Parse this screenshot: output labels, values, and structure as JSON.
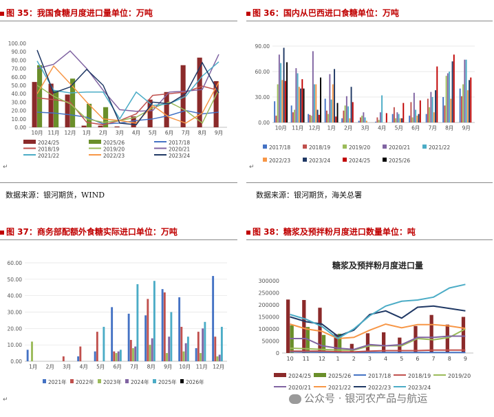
{
  "captions": {
    "fig35": "图 35：我国食糖月度进口量单位：万吨",
    "fig36": "图 36：国内从巴西进口食糖单位：万吨",
    "fig37": "图 37：商务部配额外食糖实际进口单位：万吨",
    "fig38": "图 38：糖浆及预拌粉月度进口数量单位：吨"
  },
  "sources": {
    "left": "数据来源：银河期货，WIND",
    "right": "数据来源：银河期货，海关总署"
  },
  "watermark": "公众号 · 银河农产品与航运",
  "chart_data": [
    {
      "id": "fig35",
      "type": "bar+line",
      "categories": [
        "10月",
        "11月",
        "12月",
        "1月",
        "2月",
        "3月",
        "4月",
        "5月",
        "6月",
        "7月",
        "8月",
        "9月"
      ],
      "y_ticks": [
        "0.00",
        "10.00",
        "20.00",
        "30.00",
        "40.00",
        "50.00",
        "60.00",
        "70.00",
        "80.00",
        "90.00",
        "100.00"
      ],
      "ylim": [
        0,
        100
      ],
      "bar_series": [
        {
          "name": "2024/25",
          "color": "#8b2a2a",
          "values": [
            54,
            52,
            39,
            2,
            2,
            1,
            13,
            33,
            42,
            74,
            83,
            55
          ]
        },
        {
          "name": "2025/26",
          "color": "#6a8f2a",
          "values": [
            74,
            44,
            58,
            28,
            24,
            null,
            null,
            null,
            null,
            null,
            null,
            null
          ]
        }
      ],
      "line_series": [
        {
          "name": "2017/18",
          "color": "#4472c4",
          "values": [
            18,
            17,
            15,
            12,
            4,
            5,
            8,
            10,
            14,
            20,
            16,
            18
          ]
        },
        {
          "name": "2018/19",
          "color": "#c0504d",
          "values": [
            35,
            33,
            30,
            6,
            3,
            8,
            16,
            38,
            40,
            42,
            49,
            44
          ]
        },
        {
          "name": "2019/20",
          "color": "#9bbb59",
          "values": [
            50,
            37,
            28,
            10,
            6,
            8,
            12,
            23,
            30,
            20,
            5,
            45
          ]
        },
        {
          "name": "2020/21",
          "color": "#8064a2",
          "values": [
            70,
            75,
            91,
            70,
            44,
            21,
            19,
            20,
            42,
            43,
            45,
            87
          ]
        },
        {
          "name": "2021/22",
          "color": "#4bacc6",
          "values": [
            79,
            44,
            41,
            42,
            42,
            10,
            42,
            26,
            28,
            37,
            61,
            78
          ]
        },
        {
          "name": "2022/23",
          "color": "#f79646",
          "values": [
            40,
            73,
            52,
            30,
            10,
            8,
            5,
            26,
            12,
            5,
            17,
            54
          ]
        },
        {
          "name": "2023/24",
          "color": "#1f3864",
          "values": [
            92,
            41,
            48,
            69,
            50,
            5,
            3,
            30,
            28,
            40,
            77,
            41
          ]
        }
      ]
    },
    {
      "id": "fig36",
      "type": "bar",
      "categories": [
        "10月",
        "11月",
        "12月",
        "1月",
        "2月",
        "3月",
        "4月",
        "5月",
        "6月",
        "7月",
        "8月",
        "9月"
      ],
      "y_ticks": [
        "0.00",
        "30.00",
        "60.00",
        "90.00"
      ],
      "ylim": [
        0,
        90
      ],
      "series": [
        {
          "name": "2017/18",
          "color": "#4472c4",
          "values": [
            25,
            20,
            10,
            28,
            5,
            2,
            1,
            10,
            8,
            10,
            30,
            40
          ]
        },
        {
          "name": "2018/19",
          "color": "#c0504d",
          "values": [
            8,
            12,
            9,
            14,
            14,
            6,
            6,
            18,
            24,
            28,
            20,
            31
          ]
        },
        {
          "name": "2019/20",
          "color": "#9bbb59",
          "values": [
            45,
            15,
            8,
            10,
            20,
            8,
            3,
            5,
            6,
            18,
            55,
            45
          ]
        },
        {
          "name": "2020/21",
          "color": "#8064a2",
          "values": [
            80,
            64,
            84,
            57,
            31,
            12,
            12,
            12,
            35,
            36,
            58,
            74
          ]
        },
        {
          "name": "2021/22",
          "color": "#4bacc6",
          "values": [
            70,
            58,
            45,
            27,
            19,
            6,
            32,
            10,
            15,
            30,
            60,
            74
          ]
        },
        {
          "name": "2022/23",
          "color": "#f79646",
          "values": [
            50,
            42,
            45,
            45,
            5,
            2,
            0,
            5,
            8,
            12,
            28,
            38
          ]
        },
        {
          "name": "2023/24",
          "color": "#1f3864",
          "values": [
            88,
            40,
            15,
            63,
            42,
            0,
            0,
            5,
            10,
            38,
            72,
            50
          ]
        },
        {
          "name": "2024/25",
          "color": "#c00000",
          "values": [
            49,
            51,
            9,
            7,
            24,
            0,
            11,
            23,
            26,
            66,
            80,
            53
          ]
        },
        {
          "name": "2025/26",
          "color": "#000000",
          "values": [
            71,
            40,
            53,
            23,
            null,
            null,
            null,
            null,
            null,
            null,
            null,
            null
          ]
        }
      ]
    },
    {
      "id": "fig37",
      "type": "bar",
      "categories": [
        "1月",
        "2月",
        "3月",
        "4月",
        "5月",
        "6月",
        "7月",
        "8月",
        "9月",
        "10月",
        "11月",
        "12月"
      ],
      "y_ticks": [
        "0.00",
        "10.00",
        "20.00",
        "30.00",
        "40.00",
        "50.00",
        "60.00"
      ],
      "ylim": [
        0,
        60
      ],
      "series": [
        {
          "name": "2021年",
          "color": "#4472c4",
          "values": [
            7,
            0,
            0,
            3,
            6,
            33,
            29,
            28,
            44,
            39,
            8,
            52
          ]
        },
        {
          "name": "2022年",
          "color": "#c0504d",
          "values": [
            0,
            0,
            3,
            9,
            18,
            6,
            13,
            38,
            42,
            21,
            18,
            15
          ]
        },
        {
          "name": "2023年",
          "color": "#9bbb59",
          "values": [
            12,
            0,
            0,
            0,
            0,
            5,
            8,
            10,
            5,
            6,
            5,
            3
          ]
        },
        {
          "name": "2024年",
          "color": "#8064a2",
          "values": [
            0,
            0,
            0,
            0,
            0,
            6,
            9,
            14,
            15,
            11,
            20,
            4
          ]
        },
        {
          "name": "2025年",
          "color": "#4bacc6",
          "values": [
            0,
            0,
            0,
            0,
            21,
            7,
            47,
            49,
            30,
            15,
            24,
            21
          ]
        },
        {
          "name": "2026年",
          "color": "#000000",
          "values": [
            null,
            null,
            null,
            null,
            null,
            null,
            null,
            null,
            null,
            null,
            null,
            null
          ]
        }
      ]
    },
    {
      "id": "fig38",
      "type": "bar+line",
      "title": "糖浆及预拌粉月度进口量",
      "categories": [
        "10",
        "11",
        "12",
        "1",
        "2",
        "3",
        "4",
        "5",
        "6",
        "7",
        "8",
        "9"
      ],
      "y_ticks": [
        "0",
        "50000",
        "100000",
        "150000",
        "200000",
        "250000",
        "300000"
      ],
      "ylim": [
        0,
        300000
      ],
      "bar_series": [
        {
          "name": "2024/25",
          "color": "#8b2a2a",
          "values": [
            222000,
            220000,
            188000,
            78000,
            38000,
            82000,
            86000,
            64000,
            112000,
            158000,
            118000,
            150000
          ]
        },
        {
          "name": "2025/26",
          "color": "#6a8f2a",
          "values": [
            115000,
            108000,
            75000,
            80000,
            null,
            null,
            null,
            null,
            null,
            null,
            null,
            null
          ]
        }
      ],
      "line_series": [
        {
          "name": "2017/18",
          "color": "#4472c4",
          "values": [
            5000,
            4000,
            3000,
            2000,
            2000,
            2000,
            2000,
            2000,
            2000,
            2000,
            2000,
            2000
          ]
        },
        {
          "name": "2018/19",
          "color": "#c0504d",
          "values": [
            8000,
            8000,
            8000,
            5000,
            5000,
            8000,
            10000,
            10000,
            10000,
            12000,
            12000,
            12000
          ]
        },
        {
          "name": "2019/20",
          "color": "#9bbb59",
          "values": [
            20000,
            18000,
            15000,
            12000,
            12000,
            30000,
            30000,
            30000,
            60000,
            55000,
            65000,
            100000
          ]
        },
        {
          "name": "2020/21",
          "color": "#8064a2",
          "values": [
            60000,
            60000,
            30000,
            20000,
            15000,
            35000,
            30000,
            35000,
            65000,
            65000,
            70000,
            70000
          ]
        },
        {
          "name": "2021/22",
          "color": "#f79646",
          "values": [
            120000,
            100000,
            90000,
            60000,
            65000,
            95000,
            120000,
            105000,
            118000,
            118000,
            112000,
            102000
          ]
        },
        {
          "name": "2022/23",
          "color": "#1f3864",
          "values": [
            150000,
            130000,
            120000,
            70000,
            95000,
            160000,
            175000,
            145000,
            190000,
            195000,
            185000,
            175000
          ]
        },
        {
          "name": "2023/24",
          "color": "#4bacc6",
          "values": [
            160000,
            140000,
            110000,
            60000,
            100000,
            155000,
            195000,
            215000,
            220000,
            232000,
            270000,
            285000
          ]
        }
      ]
    }
  ]
}
